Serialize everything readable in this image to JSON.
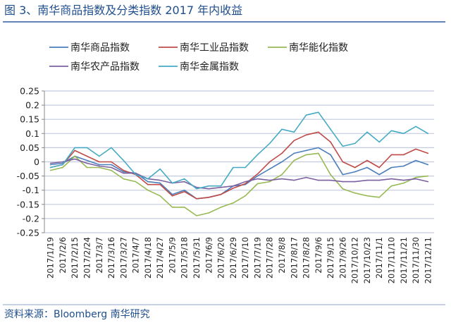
{
  "title": "图 3、南华商品指数及分类指数 2017 年内收益",
  "source": "资料来源：Bloomberg 南华研究",
  "colors": {
    "title": "#1f4e8c",
    "rule": "#2e5fa3",
    "grid": "#c3cbe0"
  },
  "chart_data": {
    "type": "line",
    "title": "",
    "xlabel": "",
    "ylabel": "",
    "ylim": [
      -0.25,
      0.25
    ],
    "yticks": [
      "0.25",
      "0.2",
      "0.15",
      "0.1",
      "0.05",
      "0",
      "-0.05",
      "-0.1",
      "-0.15",
      "-0.2",
      "-0.25"
    ],
    "ytick_values": [
      0.25,
      0.2,
      0.15,
      0.1,
      0.05,
      0,
      -0.05,
      -0.1,
      -0.15,
      -0.2,
      -0.25
    ],
    "grid": true,
    "legend_placement": "top",
    "categories": [
      "2017/1/19",
      "2017/2/6",
      "2017/2/15",
      "2017/2/24",
      "2017/3/7",
      "2017/3/16",
      "2017/3/27",
      "2017/4/7",
      "2017/4/18",
      "2017/4/27",
      "2017/5/9",
      "2017/5/18",
      "2017/5/31",
      "2017/6/9",
      "2017/6/20",
      "2017/6/29",
      "2017/7/10",
      "2017/7/19",
      "2017/7/28",
      "2017/8/8",
      "2017/8/17",
      "2017/8/28",
      "2017/9/6",
      "2017/9/15",
      "2017/9/26",
      "2017/10/12",
      "2017/10/23",
      "2017/11/1",
      "2017/11/10",
      "2017/11/21",
      "2017/11/30",
      "2017/12/11"
    ],
    "series": [
      {
        "name": "南华商品指数",
        "color": "#4a7ebb",
        "values": [
          -0.01,
          -0.005,
          0.02,
          0.005,
          -0.01,
          -0.01,
          -0.035,
          -0.04,
          -0.07,
          -0.075,
          -0.115,
          -0.1,
          -0.13,
          -0.125,
          -0.115,
          -0.085,
          -0.08,
          -0.05,
          -0.025,
          0,
          0.03,
          0.04,
          0.05,
          0.025,
          -0.045,
          -0.035,
          -0.02,
          -0.045,
          -0.02,
          -0.015,
          0.005,
          -0.01
        ]
      },
      {
        "name": "南华工业品指数",
        "color": "#be4b48",
        "values": [
          -0.02,
          -0.01,
          0.04,
          0.02,
          0,
          0,
          -0.03,
          -0.045,
          -0.08,
          -0.08,
          -0.12,
          -0.105,
          -0.13,
          -0.125,
          -0.115,
          -0.093,
          -0.077,
          -0.043,
          0,
          0.03,
          0.075,
          0.095,
          0.105,
          0.07,
          0,
          -0.02,
          0.005,
          -0.02,
          0.025,
          0.025,
          0.045,
          0.03
        ]
      },
      {
        "name": "南华能化指数",
        "color": "#98b954",
        "values": [
          -0.03,
          -0.02,
          0.02,
          -0.02,
          -0.02,
          -0.03,
          -0.06,
          -0.07,
          -0.1,
          -0.12,
          -0.16,
          -0.16,
          -0.19,
          -0.18,
          -0.16,
          -0.145,
          -0.12,
          -0.077,
          -0.07,
          -0.045,
          0.005,
          0.025,
          0.03,
          -0.045,
          -0.095,
          -0.11,
          -0.12,
          -0.125,
          -0.085,
          -0.075,
          -0.055,
          -0.05
        ]
      },
      {
        "name": "南华农产品指数",
        "color": "#7d60a0",
        "values": [
          -0.005,
          0,
          0.01,
          -0.005,
          -0.015,
          -0.02,
          -0.04,
          -0.04,
          -0.06,
          -0.065,
          -0.075,
          -0.07,
          -0.09,
          -0.095,
          -0.09,
          -0.085,
          -0.07,
          -0.06,
          -0.065,
          -0.06,
          -0.065,
          -0.055,
          -0.065,
          -0.065,
          -0.07,
          -0.07,
          -0.065,
          -0.065,
          -0.06,
          -0.065,
          -0.06,
          -0.07
        ]
      },
      {
        "name": "南华金属指数",
        "color": "#46aac5",
        "values": [
          -0.02,
          -0.01,
          0.05,
          0.05,
          0.02,
          0.05,
          0.005,
          -0.045,
          -0.06,
          -0.025,
          -0.075,
          -0.06,
          -0.095,
          -0.085,
          -0.085,
          -0.02,
          -0.02,
          0.025,
          0.065,
          0.115,
          0.105,
          0.165,
          0.175,
          0.115,
          0.055,
          0.065,
          0.105,
          0.07,
          0.11,
          0.1,
          0.125,
          0.1
        ]
      }
    ]
  }
}
